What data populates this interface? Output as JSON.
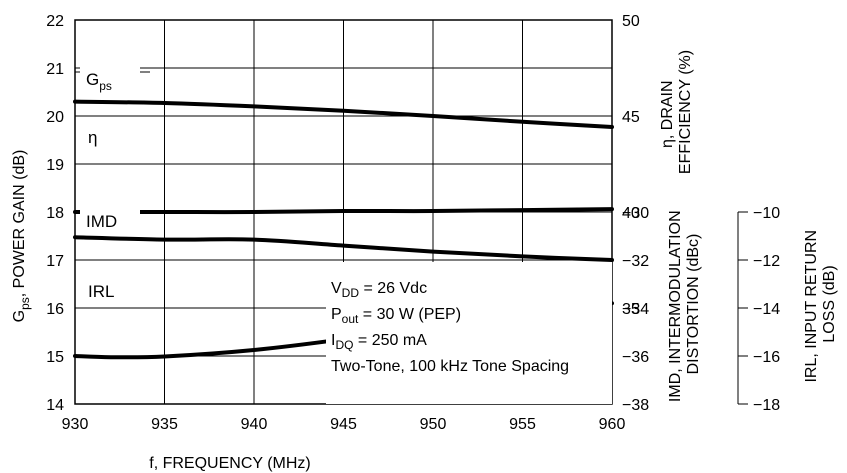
{
  "chart_data": {
    "type": "line",
    "x": [
      930,
      935,
      940,
      945,
      950,
      955,
      960
    ],
    "xticks": [
      "930",
      "935",
      "940",
      "945",
      "950",
      "955",
      "960"
    ],
    "xlim": [
      930,
      960
    ],
    "xlabel": "f, FREQUENCY (MHz)",
    "y_left": {
      "label_pre": "G",
      "label_sub": "ps",
      "label_post": ",  POWER GAIN (dB)",
      "lim": [
        14,
        22
      ],
      "ticks": [
        "14",
        "15",
        "16",
        "17",
        "18",
        "19",
        "20",
        "21",
        "22"
      ]
    },
    "y_right_eff": {
      "label_line1": "η, DRAIN",
      "label_line2": "EFFICIENCY (%)",
      "lim": [
        30,
        50
      ],
      "ticks": [
        "35",
        "40",
        "45",
        "50"
      ]
    },
    "y_right_imd": {
      "label_line1": "IMD, INTERMODULATION",
      "label_line2": "DISTORTION (dBc)",
      "lim": [
        -38,
        -30
      ],
      "ticks": [
        "-30",
        "-32",
        "-34",
        "-36",
        "-38"
      ]
    },
    "y_right_irl": {
      "label_line1": "IRL, INPUT RETURN",
      "label_line2": "LOSS (dB)",
      "lim": [
        -18,
        -10
      ],
      "ticks": [
        "-10",
        "-12",
        "-14",
        "-16",
        "-18"
      ]
    },
    "series": [
      {
        "name": "G",
        "name_sub": "ps",
        "axis": "left",
        "x": [
          930,
          935,
          940,
          945,
          950,
          955,
          960
        ],
        "values": [
          20.3,
          20.27,
          20.2,
          20.11,
          20.0,
          19.88,
          19.77
        ]
      },
      {
        "name": "η",
        "axis": "eff",
        "x": [
          930,
          935,
          940,
          945,
          950,
          955,
          960
        ],
        "values": [
          40.0,
          40.0,
          40.0,
          40.05,
          40.05,
          40.1,
          40.15
        ]
      },
      {
        "name": "IMD",
        "axis": "imd",
        "x": [
          930,
          935,
          940,
          945,
          950,
          955,
          960
        ],
        "values": [
          -31.05,
          -31.15,
          -31.15,
          -31.4,
          -31.65,
          -31.85,
          -32.0
        ]
      },
      {
        "name": "IRL",
        "axis": "irl",
        "x": [
          930,
          932,
          935,
          940,
          945,
          950,
          955,
          960
        ],
        "values": [
          -16.0,
          -16.05,
          -16.02,
          -15.75,
          -15.3,
          -14.75,
          -14.25,
          -13.8
        ]
      }
    ],
    "conditions": [
      {
        "pre": "V",
        "sub": "DD",
        "post": " = 26 Vdc"
      },
      {
        "pre": "P",
        "sub": "out",
        "post": " = 30 W (PEP)"
      },
      {
        "pre": "I",
        "sub": "DQ",
        "post": " = 250 mA"
      },
      {
        "pre": "Two-Tone, 100 kHz Tone Spacing",
        "sub": "",
        "post": ""
      }
    ]
  }
}
